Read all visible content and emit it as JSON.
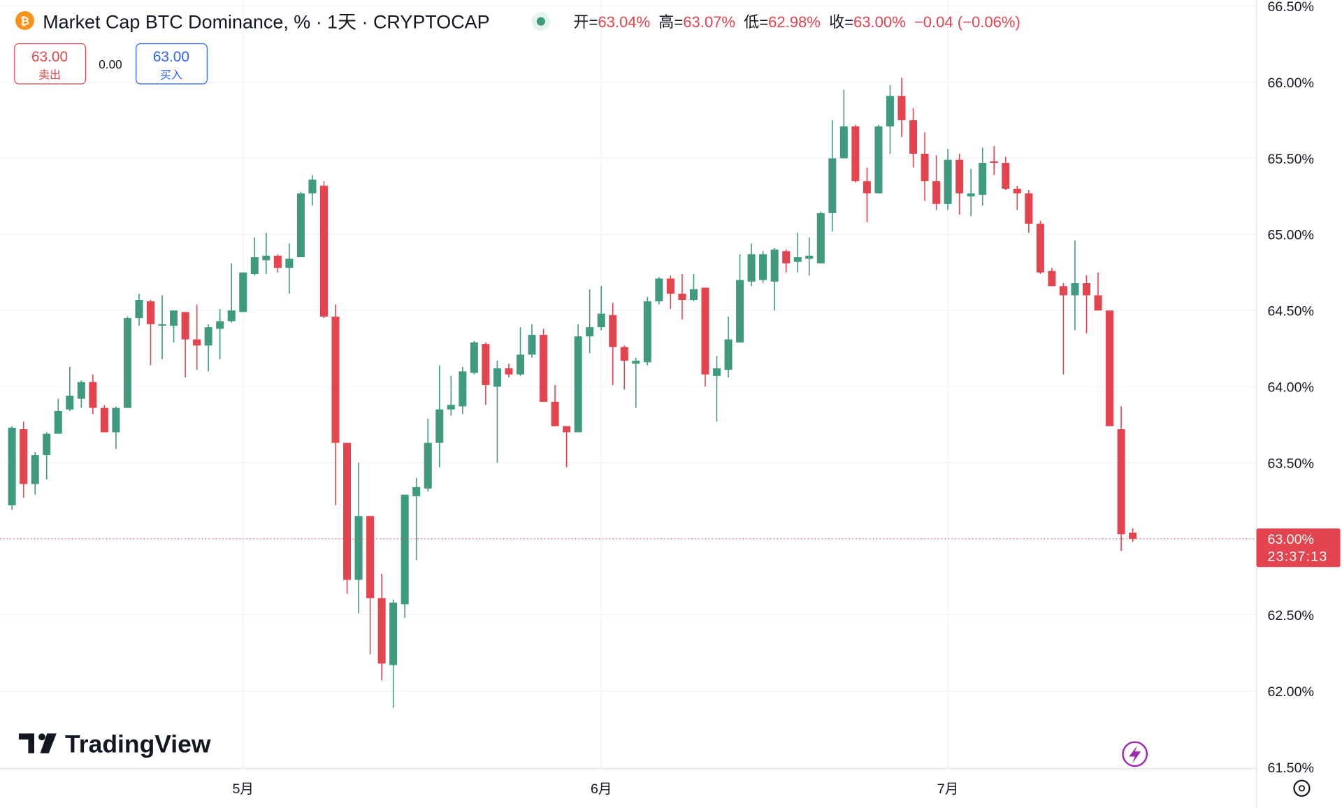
{
  "chart_data": {
    "type": "candlestick",
    "title": "Market Cap BTC Dominance, % · 1天 · CRYPTOCAP",
    "ohlc_header": [
      {
        "label": "开=",
        "value": "63.04%"
      },
      {
        "label": "高=",
        "value": "63.07%"
      },
      {
        "label": "低=",
        "value": "62.98%"
      },
      {
        "label": "收=",
        "value": "63.00%"
      }
    ],
    "change": "−0.04 (−0.06%)",
    "sell_button": {
      "price": "63.00",
      "label": "卖出"
    },
    "spread": "0.00",
    "buy_button": {
      "price": "63.00",
      "label": "买入"
    },
    "watermark": "TradingView",
    "last_price": {
      "value": 63.0,
      "label": "63.00%",
      "countdown": "23:37:13"
    },
    "up_color": "#3f9a7f",
    "down_color": "#e3444e",
    "grid": true,
    "categories": [
      null,
      null,
      null,
      null,
      null,
      null,
      null,
      null,
      null,
      null,
      null,
      null,
      null,
      null,
      null,
      null,
      null,
      null,
      null,
      null,
      "5月",
      null,
      null,
      null,
      null,
      null,
      null,
      null,
      null,
      null,
      null,
      null,
      null,
      null,
      null,
      null,
      null,
      null,
      null,
      null,
      null,
      null,
      null,
      null,
      null,
      null,
      null,
      null,
      null,
      null,
      null,
      "6月",
      null,
      null,
      null,
      null,
      null,
      null,
      null,
      null,
      null,
      null,
      null,
      null,
      null,
      null,
      null,
      null,
      null,
      null,
      null,
      null,
      null,
      null,
      null,
      null,
      null,
      null,
      null,
      null,
      null,
      "7月",
      null,
      null,
      null,
      null,
      null,
      null,
      null,
      null,
      null,
      null,
      null,
      null,
      null,
      null,
      null,
      null
    ],
    "open": [
      63.22,
      63.72,
      63.36,
      63.55,
      63.69,
      63.85,
      63.92,
      64.03,
      63.86,
      63.7,
      63.86,
      64.45,
      64.56,
      64.4,
      64.4,
      64.49,
      64.31,
      64.27,
      64.38,
      64.43,
      64.49,
      64.74,
      64.83,
      64.86,
      64.78,
      64.85,
      65.27,
      65.32,
      64.46,
      63.63,
      62.73,
      63.15,
      62.61,
      62.17,
      62.57,
      63.28,
      63.33,
      63.63,
      63.85,
      63.87,
      64.09,
      64.28,
      64.0,
      64.12,
      64.08,
      64.21,
      64.34,
      63.9,
      63.74,
      63.7,
      64.33,
      64.39,
      64.47,
      64.26,
      64.15,
      64.16,
      64.56,
      64.71,
      64.61,
      64.57,
      64.65,
      64.07,
      64.11,
      64.29,
      64.69,
      64.7,
      64.69,
      64.89,
      64.82,
      64.84,
      64.81,
      65.14,
      65.5,
      65.71,
      65.35,
      65.27,
      65.71,
      65.91,
      65.75,
      65.53,
      65.35,
      65.2,
      65.49,
      65.25,
      65.26,
      65.48,
      65.47,
      65.3,
      65.27,
      65.07,
      64.76,
      64.66,
      64.6,
      64.68,
      64.6,
      64.5,
      63.72,
      63.04
    ],
    "high": [
      63.74,
      63.77,
      63.57,
      63.7,
      63.92,
      64.13,
      64.04,
      64.08,
      63.88,
      63.87,
      64.46,
      64.61,
      64.57,
      64.6,
      64.5,
      64.49,
      64.54,
      64.41,
      64.51,
      64.81,
      64.75,
      64.98,
      65.01,
      64.87,
      64.94,
      65.28,
      65.39,
      65.35,
      64.54,
      63.63,
      63.5,
      63.15,
      62.77,
      62.6,
      63.29,
      63.4,
      63.79,
      64.14,
      64.07,
      64.13,
      64.3,
      64.29,
      64.17,
      64.15,
      64.39,
      64.41,
      64.38,
      64.01,
      63.74,
      64.41,
      64.64,
      64.66,
      64.55,
      64.27,
      64.19,
      64.59,
      64.72,
      64.73,
      64.74,
      64.74,
      64.65,
      64.2,
      64.46,
      64.87,
      64.94,
      64.89,
      64.91,
      64.9,
      65.01,
      64.98,
      65.15,
      65.75,
      65.95,
      65.72,
      65.44,
      65.72,
      65.98,
      66.03,
      65.83,
      65.67,
      65.52,
      65.56,
      65.53,
      65.43,
      65.57,
      65.58,
      65.51,
      65.32,
      65.29,
      65.09,
      64.78,
      64.68,
      64.96,
      64.73,
      64.75,
      64.5,
      63.87,
      63.07
    ],
    "low": [
      63.19,
      63.27,
      63.29,
      63.39,
      63.69,
      63.84,
      63.86,
      63.82,
      63.7,
      63.59,
      63.86,
      64.4,
      64.14,
      64.18,
      64.29,
      64.06,
      64.11,
      64.1,
      64.18,
      64.42,
      64.49,
      64.73,
      64.74,
      64.75,
      64.61,
      64.85,
      65.19,
      64.45,
      63.22,
      62.64,
      62.51,
      62.24,
      62.07,
      61.89,
      62.48,
      62.86,
      63.31,
      63.47,
      63.81,
      63.82,
      64.08,
      63.88,
      63.5,
      64.06,
      64.07,
      64.19,
      63.9,
      63.74,
      63.47,
      63.7,
      64.22,
      64.37,
      64.01,
      63.98,
      63.86,
      64.14,
      64.54,
      64.51,
      64.44,
      64.56,
      64.0,
      63.77,
      64.06,
      64.29,
      64.66,
      64.68,
      64.5,
      64.75,
      64.75,
      64.73,
      64.81,
      65.02,
      65.5,
      65.34,
      65.08,
      65.27,
      65.53,
      65.64,
      65.44,
      65.22,
      65.16,
      65.16,
      65.13,
      65.12,
      65.19,
      65.39,
      65.29,
      65.16,
      65.01,
      64.74,
      64.66,
      64.08,
      64.37,
      64.35,
      64.5,
      63.74,
      62.92,
      62.98
    ],
    "close": [
      63.73,
      63.36,
      63.55,
      63.69,
      63.84,
      63.94,
      64.03,
      63.86,
      63.7,
      63.86,
      64.45,
      64.57,
      64.41,
      64.41,
      64.5,
      64.31,
      64.27,
      64.39,
      64.43,
      64.5,
      64.75,
      64.85,
      64.86,
      64.78,
      64.84,
      65.27,
      65.36,
      64.46,
      63.63,
      62.73,
      63.15,
      62.61,
      62.18,
      62.58,
      63.29,
      63.34,
      63.63,
      63.85,
      63.88,
      64.1,
      64.29,
      64.01,
      64.12,
      64.08,
      64.21,
      64.34,
      63.9,
      63.74,
      63.7,
      64.33,
      64.39,
      64.48,
      64.26,
      64.17,
      64.17,
      64.56,
      64.71,
      64.61,
      64.57,
      64.64,
      64.08,
      64.12,
      64.31,
      64.7,
      64.87,
      64.87,
      64.9,
      64.81,
      64.85,
      64.86,
      65.14,
      65.5,
      65.71,
      65.35,
      65.27,
      65.71,
      65.91,
      65.75,
      65.53,
      65.35,
      65.2,
      65.49,
      65.27,
      65.27,
      65.47,
      65.47,
      65.3,
      65.27,
      65.07,
      64.75,
      64.66,
      64.6,
      64.68,
      64.6,
      64.5,
      63.74,
      63.03,
      63.0
    ],
    "ylim": [
      61.49,
      66.54
    ],
    "yticks": [
      {
        "value": 61.5,
        "label": "61.50%"
      },
      {
        "value": 62,
        "label": "62.00%"
      },
      {
        "value": 62.5,
        "label": "62.50%"
      },
      {
        "value": 63,
        "label": "63.00%"
      },
      {
        "value": 63.5,
        "label": "63.50%"
      },
      {
        "value": 64,
        "label": "64.00%"
      },
      {
        "value": 64.5,
        "label": "64.50%"
      },
      {
        "value": 65,
        "label": "65.00%"
      },
      {
        "value": 65.5,
        "label": "65.50%"
      },
      {
        "value": 66,
        "label": "66.00%"
      },
      {
        "value": 66.5,
        "label": "66.50%"
      }
    ]
  }
}
